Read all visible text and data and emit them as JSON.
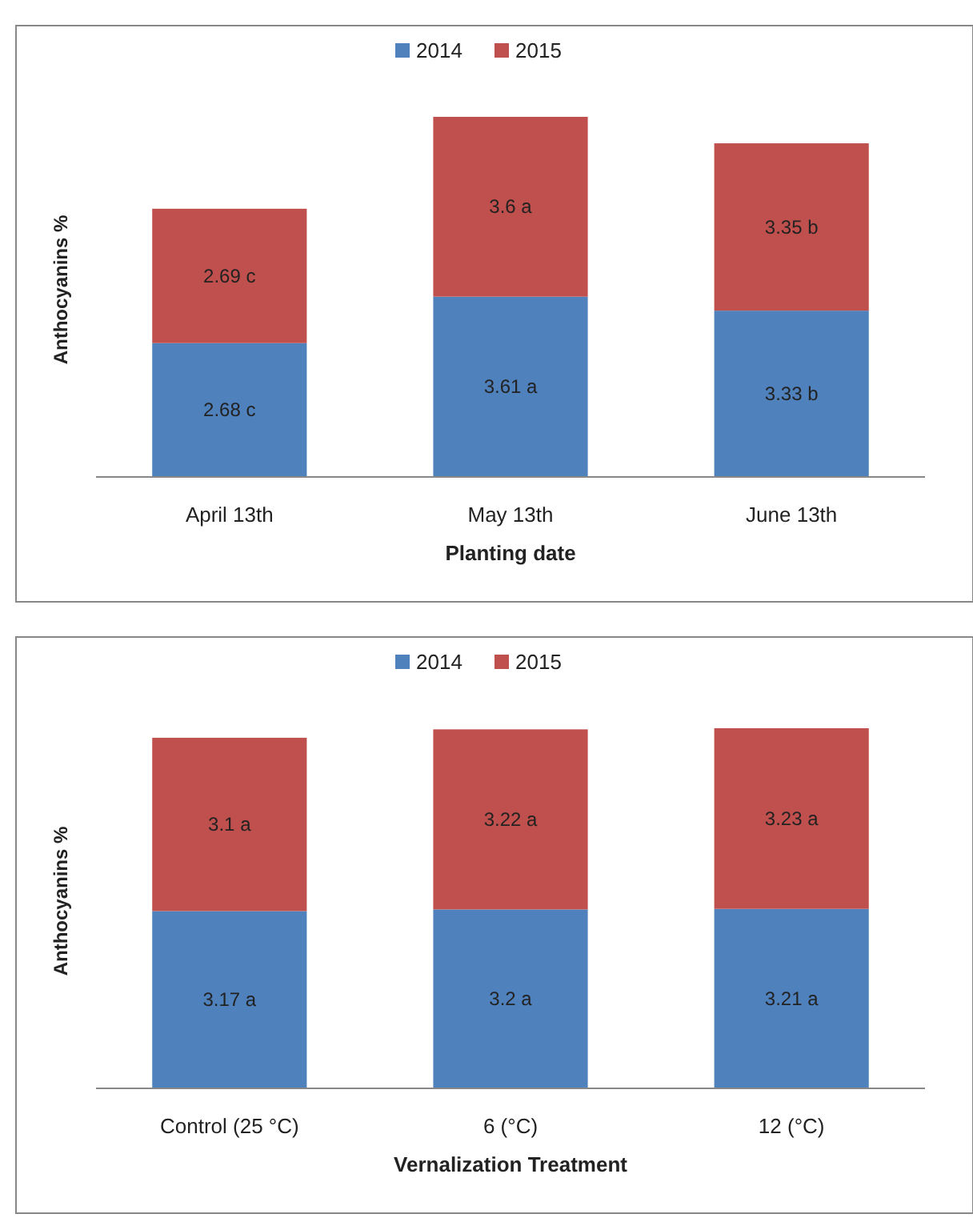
{
  "chart_data": [
    {
      "type": "bar",
      "stacked": true,
      "ylabel": "Anthocyanins %",
      "xlabel": "Planting date",
      "categories": [
        "April 13th",
        "May 13th",
        "June 13th"
      ],
      "legend": "top",
      "series": [
        {
          "name": "2014",
          "color": "#4f81bd",
          "values": [
            2.68,
            3.61,
            3.33
          ],
          "value_labels": [
            "2.68 c",
            "3.61 a",
            "3.33 b"
          ]
        },
        {
          "name": "2015",
          "color": "#c0504d",
          "values": [
            2.69,
            3.6,
            3.35
          ],
          "value_labels": [
            "2.69 c",
            "3.6 a",
            "3.35 b"
          ]
        }
      ]
    },
    {
      "type": "bar",
      "stacked": true,
      "ylabel": "Anthocyanins %",
      "xlabel": "Vernalization Treatment",
      "categories": [
        "Control (25 °C)",
        "6 (°C)",
        "12 (°C)"
      ],
      "legend": "top",
      "series": [
        {
          "name": "2014",
          "color": "#4f81bd",
          "values": [
            3.17,
            3.2,
            3.21
          ],
          "value_labels": [
            "3.17 a",
            "3.2 a",
            "3.21 a"
          ]
        },
        {
          "name": "2015",
          "color": "#c0504d",
          "values": [
            3.1,
            3.22,
            3.23
          ],
          "value_labels": [
            "3.1 a",
            "3.22 a",
            "3.23 a"
          ]
        }
      ]
    }
  ]
}
